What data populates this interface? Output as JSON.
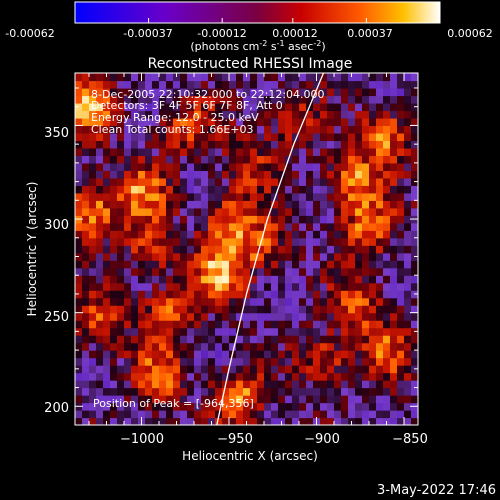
{
  "colorbar": {
    "ticks": [
      "-0.00062",
      "-0.00037",
      "-0.00012",
      "0.00012",
      "0.00037",
      "0.00062"
    ],
    "unit_label": "(photons cm",
    "unit_exp1": "-2",
    "unit_mid": " s",
    "unit_exp2": "-1",
    "unit_mid2": " asec",
    "unit_exp3": "-2",
    "unit_end": ")"
  },
  "annotations": {
    "time": "8-Dec-2005 22:10:32.000 to 22:12:04.000",
    "detectors": "Detectors: 3F 4F 5F 6F 7F 8F, Att 0",
    "energy": "Energy Range: 12.0 - 25.0 keV",
    "clean": "Clean      Total counts: 1.66E+03",
    "peak": "Position of Peak = [-964,356]"
  },
  "footer": {
    "timestamp": "3-May-2022 17:46"
  },
  "chart_data": {
    "type": "heatmap",
    "title": "Reconstructed RHESSI Image",
    "xlabel": "Heliocentric X (arcsec)",
    "ylabel": "Heliocentric Y (arcsec)",
    "xlim": [
      -1038,
      -842
    ],
    "ylim": [
      190,
      378
    ],
    "xticks": [
      -1000,
      -950,
      -900,
      -850
    ],
    "yticks": [
      200,
      250,
      300,
      350
    ],
    "xtick_labels": [
      "−1000",
      "−950",
      "−900",
      "−850"
    ],
    "ytick_labels": [
      "200",
      "250",
      "300",
      "350"
    ],
    "colorbar_range": [
      -0.00062,
      0.00062
    ],
    "grid": false,
    "peak": [
      -964,
      356
    ],
    "hot_spots": [
      {
        "x": -1030,
        "y": 360,
        "value": 0.00055
      },
      {
        "x": -1030,
        "y": 305,
        "value": 0.0006
      },
      {
        "x": -1000,
        "y": 315,
        "value": 0.00045
      },
      {
        "x": -995,
        "y": 285,
        "value": 0.0004
      },
      {
        "x": -985,
        "y": 250,
        "value": 0.00045
      },
      {
        "x": -1025,
        "y": 245,
        "value": 0.00042
      },
      {
        "x": -990,
        "y": 215,
        "value": 0.00045
      },
      {
        "x": -955,
        "y": 270,
        "value": 0.00055
      },
      {
        "x": -950,
        "y": 300,
        "value": 0.00048
      },
      {
        "x": -945,
        "y": 205,
        "value": 0.00052
      },
      {
        "x": -930,
        "y": 285,
        "value": 0.0004
      },
      {
        "x": -915,
        "y": 355,
        "value": 0.00035
      },
      {
        "x": -880,
        "y": 320,
        "value": 0.00055
      },
      {
        "x": -860,
        "y": 345,
        "value": 0.00052
      },
      {
        "x": -870,
        "y": 295,
        "value": 0.00046
      },
      {
        "x": -875,
        "y": 255,
        "value": 0.0004
      },
      {
        "x": -895,
        "y": 225,
        "value": 0.00042
      },
      {
        "x": -860,
        "y": 230,
        "value": 0.00035
      },
      {
        "x": -975,
        "y": 350,
        "value": 0.0004
      },
      {
        "x": -940,
        "y": 330,
        "value": 0.00032
      }
    ],
    "limb_curve": [
      [
        -957,
        190
      ],
      [
        -950,
        220
      ],
      [
        -940,
        260
      ],
      [
        -928,
        300
      ],
      [
        -913,
        340
      ],
      [
        -896,
        378
      ]
    ]
  }
}
